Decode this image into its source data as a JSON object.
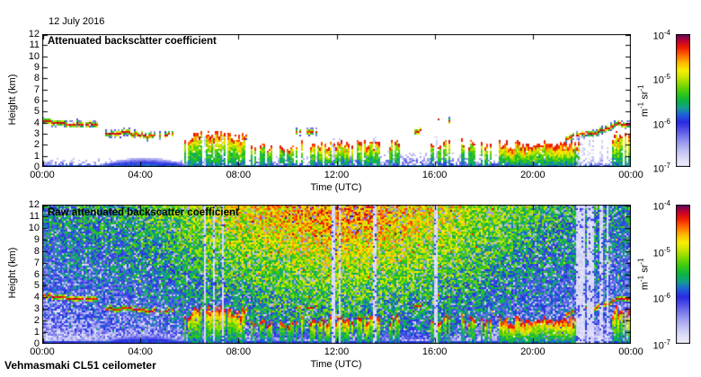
{
  "header": {
    "date": "12 July 2016"
  },
  "footer": {
    "instrument": "Vehmasmaki CL51 ceilometer"
  },
  "colormap": {
    "stops": [
      [
        0.0,
        "#f2f2fd"
      ],
      [
        0.06,
        "#dedef9"
      ],
      [
        0.13,
        "#bcbcf4"
      ],
      [
        0.2,
        "#9090ee"
      ],
      [
        0.28,
        "#5454e8"
      ],
      [
        0.34,
        "#2a2ae2"
      ],
      [
        0.4,
        "#1e64d8"
      ],
      [
        0.45,
        "#14a08c"
      ],
      [
        0.5,
        "#0ab446"
      ],
      [
        0.56,
        "#36c814"
      ],
      [
        0.62,
        "#80d800"
      ],
      [
        0.68,
        "#cce600"
      ],
      [
        0.73,
        "#f6f000"
      ],
      [
        0.79,
        "#ffb400"
      ],
      [
        0.85,
        "#ff6000"
      ],
      [
        0.9,
        "#f01e00"
      ],
      [
        0.95,
        "#c3002e"
      ],
      [
        1.0,
        "#5c0a60"
      ]
    ]
  },
  "chart_data": [
    {
      "type": "heatmap",
      "style": "processed",
      "title": "Attenuated backscatter coefficient",
      "xlabel": "Time (UTC)",
      "ylabel": "Height (km)",
      "x_ticks": [
        "00:00",
        "04:00",
        "08:00",
        "12:00",
        "16:00",
        "20:00",
        "00:00"
      ],
      "x_range_hours": [
        0,
        24
      ],
      "ylim": [
        0,
        12
      ],
      "y_ticks": [
        0,
        1,
        2,
        3,
        4,
        5,
        6,
        7,
        8,
        9,
        10,
        11,
        12
      ],
      "grid": false,
      "colorbar": {
        "scale": "log",
        "range_exponents": [
          -7,
          -4
        ],
        "ticks": [
          [
            "10",
            "-4"
          ],
          [
            "10",
            "-5"
          ],
          [
            "10",
            "-6"
          ],
          [
            "10",
            "-7"
          ]
        ],
        "unit_parts": [
          [
            "m",
            "-1"
          ],
          [
            "sr",
            "-1"
          ]
        ],
        "position": "right"
      }
    },
    {
      "type": "heatmap",
      "style": "raw",
      "title": "Raw attenuated backscatter coefficient",
      "xlabel": "Time (UTC)",
      "ylabel": "Height (km)",
      "x_ticks": [
        "00:00",
        "04:00",
        "08:00",
        "12:00",
        "16:00",
        "20:00",
        "00:00"
      ],
      "x_range_hours": [
        0,
        24
      ],
      "ylim": [
        0,
        12
      ],
      "y_ticks": [
        0,
        1,
        2,
        3,
        4,
        5,
        6,
        7,
        8,
        9,
        10,
        11,
        12
      ],
      "grid": false,
      "colorbar": {
        "scale": "log",
        "range_exponents": [
          -7,
          -4
        ],
        "ticks": [
          [
            "10",
            "-4"
          ],
          [
            "10",
            "-5"
          ],
          [
            "10",
            "-6"
          ],
          [
            "10",
            "-7"
          ]
        ],
        "unit_parts": [
          [
            "m",
            "-1"
          ],
          [
            "sr",
            "-1"
          ]
        ],
        "position": "right"
      }
    }
  ],
  "features": {
    "cloud_layers": [
      {
        "t0": 0.0,
        "t1": 2.3,
        "h0": 4.15,
        "h1": 3.85,
        "wiggle": 0.12,
        "dropout": 0.04
      },
      {
        "t0": 2.55,
        "t1": 4.7,
        "h0": 3.15,
        "h1": 2.95,
        "wiggle": 0.2,
        "dropout": 0.1
      },
      {
        "t0": 4.75,
        "t1": 5.6,
        "h0": 2.8,
        "h1": 3.05,
        "wiggle": 0.22,
        "dropout": 0.55
      },
      {
        "t0": 8.3,
        "t1": 9.4,
        "h0": 3.0,
        "h1": 3.0,
        "wiggle": 0.2,
        "dropout": 0.72
      },
      {
        "t0": 10.2,
        "t1": 11.2,
        "h0": 3.3,
        "h1": 3.1,
        "wiggle": 0.18,
        "dropout": 0.75
      },
      {
        "t0": 14.9,
        "t1": 15.7,
        "h0": 3.25,
        "h1": 3.4,
        "wiggle": 0.15,
        "dropout": 0.6
      },
      {
        "t0": 16.1,
        "t1": 16.6,
        "h0": 4.35,
        "h1": 4.25,
        "wiggle": 0.1,
        "dropout": 0.65
      },
      {
        "t0": 21.3,
        "t1": 24.0,
        "h0": 2.55,
        "h1": 4.1,
        "wiggle": 0.22,
        "dropout": 0.12
      }
    ],
    "precip_events": [
      {
        "t0": 5.7,
        "t1": 6.55,
        "cap": 2.8,
        "strength": 0.7,
        "gap_prob": 0.3
      },
      {
        "t0": 6.6,
        "t1": 8.3,
        "cap": 2.95,
        "strength": 0.85,
        "gap_prob": 0.22
      },
      {
        "t0": 8.5,
        "t1": 9.35,
        "cap": 1.95,
        "strength": 0.6,
        "gap_prob": 0.38
      },
      {
        "t0": 9.5,
        "t1": 10.15,
        "cap": 1.8,
        "strength": 0.5,
        "gap_prob": 0.5
      },
      {
        "t0": 10.2,
        "t1": 11.4,
        "cap": 2.1,
        "strength": 0.7,
        "gap_prob": 0.3
      },
      {
        "t0": 11.5,
        "t1": 12.7,
        "cap": 2.05,
        "strength": 0.88,
        "gap_prob": 0.2
      },
      {
        "t0": 12.8,
        "t1": 13.75,
        "cap": 2.3,
        "strength": 0.85,
        "gap_prob": 0.25
      },
      {
        "t0": 13.9,
        "t1": 14.7,
        "cap": 2.15,
        "strength": 0.6,
        "gap_prob": 0.45
      },
      {
        "t0": 15.8,
        "t1": 16.7,
        "cap": 2.2,
        "strength": 0.65,
        "gap_prob": 0.35
      },
      {
        "t0": 16.9,
        "t1": 18.4,
        "cap": 2.25,
        "strength": 0.7,
        "gap_prob": 0.32
      },
      {
        "t0": 18.6,
        "t1": 21.9,
        "cap": 2.1,
        "strength": 0.92,
        "gap_prob": 0.07
      },
      {
        "t0": 23.25,
        "t1": 24.0,
        "cap": 3.0,
        "strength": 0.8,
        "gap_prob": 0.25
      }
    ],
    "aerosol": {
      "ground_strip_km": 0.22,
      "bl_top_night_km": 0.85,
      "bl_top_day_km": 1.45,
      "smooth_wedge": {
        "t0": 2.0,
        "t1": 6.3,
        "top_km": 0.85
      }
    },
    "data_gaps_hours": [
      {
        "t": 6.65,
        "w": 0.1
      },
      {
        "t": 7.0,
        "w": 0.12
      },
      {
        "t": 7.35,
        "w": 0.1
      },
      {
        "t": 11.85,
        "w": 0.12
      },
      {
        "t": 12.15,
        "w": 0.1
      },
      {
        "t": 13.55,
        "w": 0.12
      },
      {
        "t": 16.05,
        "w": 0.15
      },
      {
        "t": 21.95,
        "w": 0.35
      },
      {
        "t": 22.35,
        "w": 0.25
      },
      {
        "t": 22.8,
        "w": 0.15
      },
      {
        "t": 23.05,
        "w": 0.1
      }
    ],
    "noise": {
      "base": 0.38,
      "solar_amp": 0.42,
      "solar_center_hour": 12.2,
      "solar_sigma_hours": 5.5,
      "height_min": 0.42,
      "height_amp": 0.62,
      "height_exp": 0.8,
      "jitter": 0.16,
      "white_speck_prob": 0.1,
      "hot_speck_prob": 0.02
    }
  }
}
